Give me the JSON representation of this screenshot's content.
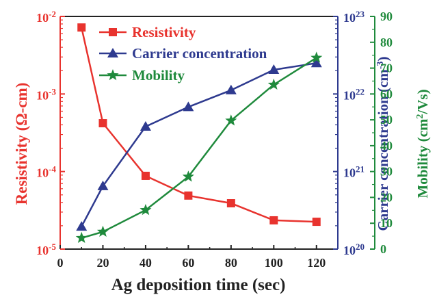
{
  "chart_data": {
    "type": "line",
    "xlabel": "Ag deposition time (sec)",
    "x_range": [
      0,
      130
    ],
    "x_ticks": [
      "0",
      "20",
      "40",
      "60",
      "80",
      "100",
      "120"
    ],
    "colors": {
      "resistivity": "#e8332e",
      "carrier": "#2e3a8f",
      "mobility": "#1f8a3c",
      "axis": "#222222"
    },
    "axes": {
      "left": {
        "label_main": "Resistivity (",
        "label_unit": "Ω-cm",
        "label_end": ")",
        "scale": "log",
        "range": [
          1e-05,
          0.01
        ],
        "tick_mantissa": "10",
        "tick_exponents": [
          "-5",
          "-4",
          "-3",
          "-2"
        ]
      },
      "middle": {
        "label_main": "Carrier concentration (cm",
        "label_sup": "-3",
        "label_end": ")",
        "scale": "log",
        "range": [
          1e+20,
          1e+23
        ],
        "tick_mantissa": "10",
        "tick_exponents": [
          "20",
          "21",
          "22",
          "23"
        ]
      },
      "right": {
        "label_main": "Mobility (cm",
        "label_sup": "2",
        "label_end": "/Vs)",
        "scale": "linear",
        "range": [
          0,
          90
        ],
        "ticks": [
          "0",
          "10",
          "20",
          "30",
          "40",
          "50",
          "60",
          "70",
          "80",
          "90"
        ]
      }
    },
    "legend": {
      "placement": "top-left",
      "entries": [
        "Resistivity",
        "Carrier concentration",
        "Mobility"
      ]
    },
    "series": [
      {
        "name": "Resistivity",
        "axis": "left",
        "marker": "square",
        "x": [
          10,
          20,
          40,
          60,
          80,
          100,
          120
        ],
        "y": [
          0.0072,
          0.00042,
          8.8e-05,
          4.9e-05,
          3.9e-05,
          2.35e-05,
          2.25e-05
        ]
      },
      {
        "name": "Carrier concentration",
        "axis": "middle",
        "marker": "triangle",
        "x": [
          10,
          20,
          40,
          60,
          80,
          100,
          120
        ],
        "y": [
          1.95e+20,
          6.5e+20,
          3.8e+21,
          6.8e+21,
          1.12e+22,
          2.05e+22,
          2.5e+22
        ]
      },
      {
        "name": "Mobility",
        "axis": "right",
        "marker": "star",
        "x": [
          10,
          20,
          40,
          60,
          80,
          100,
          120
        ],
        "y": [
          4.3,
          6.7,
          15.1,
          28.0,
          49.7,
          63.6,
          74.0
        ]
      }
    ]
  }
}
